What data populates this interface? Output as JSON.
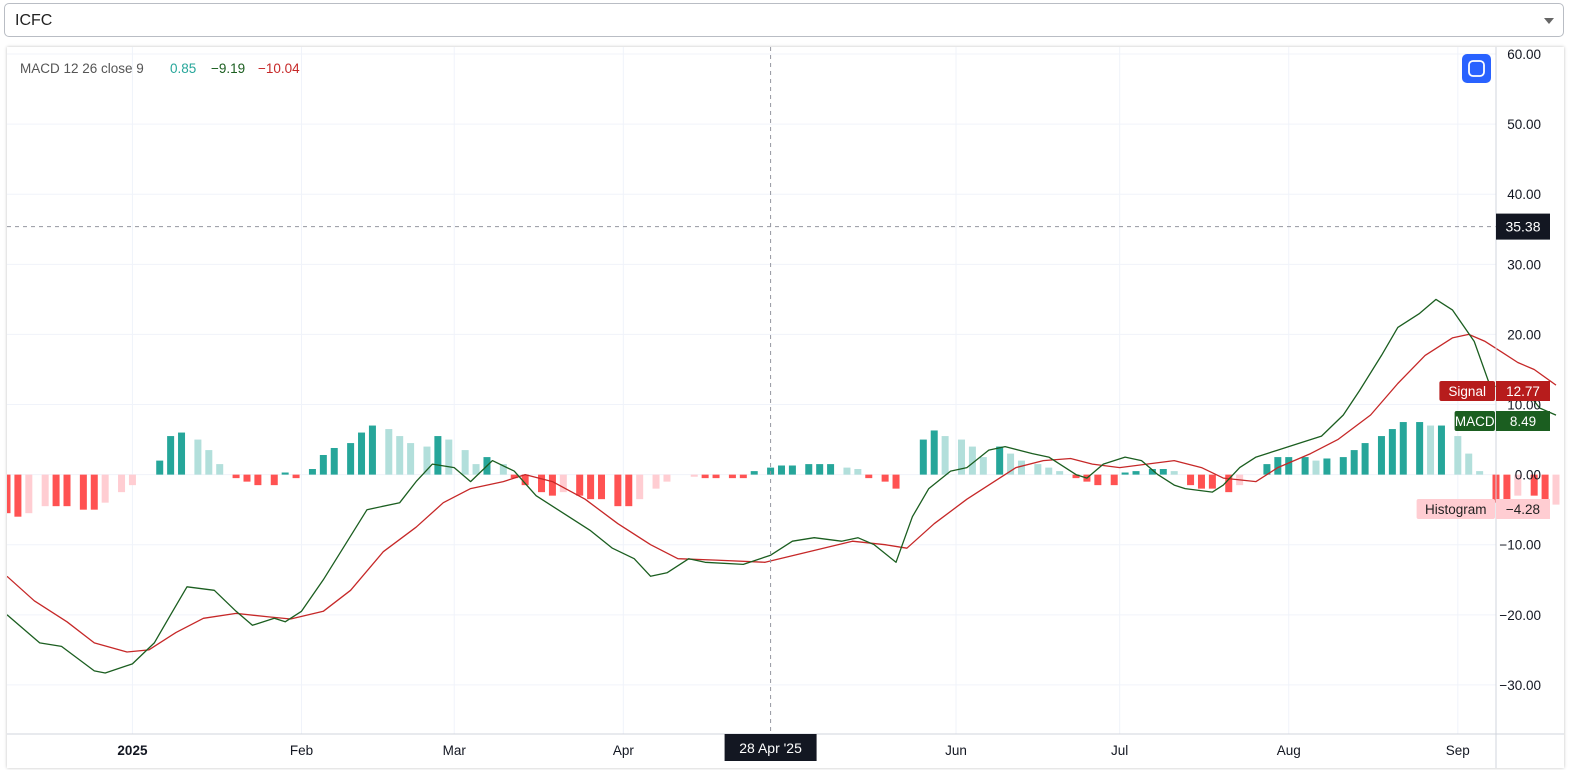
{
  "symbol": {
    "value": "ICFC"
  },
  "legend": {
    "title": "MACD 12 26 close 9",
    "v1": "0.85",
    "v2": "−9.19",
    "v3": "−10.04",
    "c1": "#26a69a",
    "c2": "#1b5e20",
    "c3": "#c62828"
  },
  "crosshair": {
    "x_label": "28 Apr '25",
    "y_label": "35.38",
    "y_value": 35.38,
    "x_date": "2025-04-28"
  },
  "badges": [
    {
      "name": "Signal",
      "value": "12.77",
      "y_value": 12.77,
      "bg": "#b71c1c",
      "fg": "#ffffff"
    },
    {
      "name": "MACD",
      "value": "8.49",
      "y_value": 8.49,
      "bg": "#1b5e20",
      "fg": "#ffffff"
    },
    {
      "name": "Histogram",
      "value": "−4.28",
      "y_value": -4.28,
      "bg": "#ffcdd2",
      "fg": "#222222"
    }
  ],
  "colors": {
    "macd": "#1b5e20",
    "signal": "#c62828",
    "hist_pos_strong": "#26a69a",
    "hist_pos_weak": "#b2dfdb",
    "hist_neg_strong": "#ff5252",
    "hist_neg_weak": "#ffcdd2",
    "grid": "#f0f3fa",
    "axis_text": "#131722",
    "crosshair": "#9598a1",
    "label_bg": "#131722",
    "button": "#2962ff"
  },
  "chart_data": {
    "type": "line",
    "ylim": [
      -37,
      61
    ],
    "xlim": [
      "2024-12-09",
      "2025-09-08"
    ],
    "y_ticks": [
      {
        "v": 60,
        "t": "60.00"
      },
      {
        "v": 50,
        "t": "50.00"
      },
      {
        "v": 40,
        "t": "40.00"
      },
      {
        "v": 30,
        "t": "30.00"
      },
      {
        "v": 20,
        "t": "20.00"
      },
      {
        "v": 10,
        "t": "10.00"
      },
      {
        "v": 0,
        "t": "0.00"
      },
      {
        "v": -10,
        "t": "−10.00"
      },
      {
        "v": -20,
        "t": "−20.00"
      },
      {
        "v": -30,
        "t": "−30.00"
      }
    ],
    "x_ticks": [
      {
        "d": "2025-01-01",
        "t": "2025",
        "bold": true
      },
      {
        "d": "2025-02-01",
        "t": "Feb"
      },
      {
        "d": "2025-03-01",
        "t": "Mar"
      },
      {
        "d": "2025-04-01",
        "t": "Apr"
      },
      {
        "d": "2025-06-01",
        "t": "Jun"
      },
      {
        "d": "2025-07-01",
        "t": "Jul"
      },
      {
        "d": "2025-08-01",
        "t": "Aug"
      },
      {
        "d": "2025-09-01",
        "t": "Sep"
      }
    ],
    "series": [
      {
        "name": "MACD",
        "points": [
          [
            "2024-12-09",
            -20.0
          ],
          [
            "2024-12-15",
            -24.0
          ],
          [
            "2024-12-19",
            -24.5
          ],
          [
            "2024-12-25",
            -28.0
          ],
          [
            "2024-12-27",
            -28.3
          ],
          [
            "2025-01-01",
            -27.0
          ],
          [
            "2025-01-05",
            -24.0
          ],
          [
            "2025-01-08",
            -20.0
          ],
          [
            "2025-01-11",
            -16.0
          ],
          [
            "2025-01-16",
            -16.5
          ],
          [
            "2025-01-20",
            -19.5
          ],
          [
            "2025-01-23",
            -21.5
          ],
          [
            "2025-01-27",
            -20.5
          ],
          [
            "2025-01-29",
            -21.0
          ],
          [
            "2025-02-01",
            -19.5
          ],
          [
            "2025-02-05",
            -15.0
          ],
          [
            "2025-02-09",
            -10.0
          ],
          [
            "2025-02-13",
            -5.0
          ],
          [
            "2025-02-19",
            -4.0
          ],
          [
            "2025-02-22",
            -1.0
          ],
          [
            "2025-02-25",
            1.5
          ],
          [
            "2025-03-01",
            1.0
          ],
          [
            "2025-03-04",
            -1.0
          ],
          [
            "2025-03-08",
            2.0
          ],
          [
            "2025-03-12",
            0.5
          ],
          [
            "2025-03-16",
            -3.0
          ],
          [
            "2025-03-22",
            -6.0
          ],
          [
            "2025-03-26",
            -8.0
          ],
          [
            "2025-03-30",
            -10.5
          ],
          [
            "2025-04-03",
            -12.0
          ],
          [
            "2025-04-06",
            -14.5
          ],
          [
            "2025-04-09",
            -14.0
          ],
          [
            "2025-04-13",
            -12.0
          ],
          [
            "2025-04-16",
            -12.5
          ],
          [
            "2025-04-23",
            -12.8
          ],
          [
            "2025-04-28",
            -11.5
          ],
          [
            "2025-05-02",
            -9.5
          ],
          [
            "2025-05-06",
            -9.0
          ],
          [
            "2025-05-11",
            -9.5
          ],
          [
            "2025-05-14",
            -9.0
          ],
          [
            "2025-05-17",
            -10.0
          ],
          [
            "2025-05-21",
            -12.5
          ],
          [
            "2025-05-24",
            -6.0
          ],
          [
            "2025-05-27",
            -2.0
          ],
          [
            "2025-05-31",
            0.5
          ],
          [
            "2025-06-03",
            1.0
          ],
          [
            "2025-06-07",
            3.5
          ],
          [
            "2025-06-10",
            4.0
          ],
          [
            "2025-06-15",
            3.0
          ],
          [
            "2025-06-18",
            2.5
          ],
          [
            "2025-06-23",
            0.0
          ],
          [
            "2025-06-25",
            -0.5
          ],
          [
            "2025-06-28",
            1.5
          ],
          [
            "2025-07-02",
            2.5
          ],
          [
            "2025-07-05",
            2.0
          ],
          [
            "2025-07-08",
            0.0
          ],
          [
            "2025-07-11",
            -1.5
          ],
          [
            "2025-07-13",
            -2.0
          ],
          [
            "2025-07-18",
            -2.5
          ],
          [
            "2025-07-20",
            -1.5
          ],
          [
            "2025-07-23",
            1.0
          ],
          [
            "2025-07-26",
            2.5
          ],
          [
            "2025-07-30",
            3.5
          ],
          [
            "2025-08-03",
            4.5
          ],
          [
            "2025-08-07",
            5.5
          ],
          [
            "2025-08-11",
            8.5
          ],
          [
            "2025-08-14",
            12.0
          ],
          [
            "2025-08-18",
            17.0
          ],
          [
            "2025-08-21",
            21.0
          ],
          [
            "2025-08-25",
            23.0
          ],
          [
            "2025-08-28",
            25.0
          ],
          [
            "2025-08-31",
            23.5
          ],
          [
            "2025-09-04",
            19.0
          ],
          [
            "2025-09-07",
            12.5
          ],
          [
            "2025-09-10",
            12.8
          ],
          [
            "2025-09-13",
            12.5
          ],
          [
            "2025-09-16",
            9.5
          ],
          [
            "2025-09-19",
            8.49
          ]
        ]
      },
      {
        "name": "Signal",
        "points": [
          [
            "2024-12-09",
            -14.5
          ],
          [
            "2024-12-14",
            -18.0
          ],
          [
            "2024-12-20",
            -21.0
          ],
          [
            "2024-12-25",
            -24.0
          ],
          [
            "2024-12-31",
            -25.3
          ],
          [
            "2025-01-04",
            -25.0
          ],
          [
            "2025-01-09",
            -22.5
          ],
          [
            "2025-01-14",
            -20.5
          ],
          [
            "2025-01-20",
            -19.8
          ],
          [
            "2025-01-26",
            -20.3
          ],
          [
            "2025-01-30",
            -20.6
          ],
          [
            "2025-02-05",
            -19.5
          ],
          [
            "2025-02-10",
            -16.5
          ],
          [
            "2025-02-16",
            -11.0
          ],
          [
            "2025-02-22",
            -7.5
          ],
          [
            "2025-02-27",
            -4.0
          ],
          [
            "2025-03-04",
            -2.0
          ],
          [
            "2025-03-10",
            -1.0
          ],
          [
            "2025-03-14",
            0.0
          ],
          [
            "2025-03-19",
            -1.0
          ],
          [
            "2025-03-25",
            -3.5
          ],
          [
            "2025-03-31",
            -7.0
          ],
          [
            "2025-04-06",
            -10.0
          ],
          [
            "2025-04-11",
            -12.0
          ],
          [
            "2025-04-18",
            -12.2
          ],
          [
            "2025-04-27",
            -12.5
          ],
          [
            "2025-05-05",
            -11.0
          ],
          [
            "2025-05-13",
            -9.5
          ],
          [
            "2025-05-19",
            -10.0
          ],
          [
            "2025-05-23",
            -10.5
          ],
          [
            "2025-05-28",
            -7.0
          ],
          [
            "2025-06-03",
            -3.5
          ],
          [
            "2025-06-08",
            -1.0
          ],
          [
            "2025-06-12",
            1.0
          ],
          [
            "2025-06-17",
            2.0
          ],
          [
            "2025-06-22",
            2.3
          ],
          [
            "2025-06-26",
            1.5
          ],
          [
            "2025-07-01",
            1.0
          ],
          [
            "2025-07-06",
            1.5
          ],
          [
            "2025-07-11",
            2.0
          ],
          [
            "2025-07-16",
            1.0
          ],
          [
            "2025-07-20",
            -0.5
          ],
          [
            "2025-07-26",
            -1.0
          ],
          [
            "2025-07-30",
            1.0
          ],
          [
            "2025-08-05",
            3.0
          ],
          [
            "2025-08-10",
            5.0
          ],
          [
            "2025-08-16",
            8.5
          ],
          [
            "2025-08-21",
            13.0
          ],
          [
            "2025-08-26",
            17.0
          ],
          [
            "2025-08-31",
            19.5
          ],
          [
            "2025-09-03",
            20.0
          ],
          [
            "2025-09-06",
            19.0
          ],
          [
            "2025-09-09",
            17.5
          ],
          [
            "2025-09-12",
            16.0
          ],
          [
            "2025-09-15",
            15.0
          ],
          [
            "2025-09-19",
            12.77
          ]
        ]
      },
      {
        "name": "Histogram",
        "type": "bar",
        "points": [
          [
            "2024-12-09",
            -5.5
          ],
          [
            "2024-12-11",
            -6.0
          ],
          [
            "2024-12-13",
            -5.5
          ],
          [
            "2024-12-16",
            -4.5
          ],
          [
            "2024-12-18",
            -4.5
          ],
          [
            "2024-12-20",
            -4.5
          ],
          [
            "2024-12-23",
            -5.0
          ],
          [
            "2024-12-25",
            -5.0
          ],
          [
            "2024-12-27",
            -4.0
          ],
          [
            "2024-12-30",
            -2.5
          ],
          [
            "2025-01-01",
            -1.5
          ],
          [
            "2025-01-06",
            2.0
          ],
          [
            "2025-01-08",
            5.5
          ],
          [
            "2025-01-10",
            6.0
          ],
          [
            "2025-01-13",
            5.0
          ],
          [
            "2025-01-15",
            3.5
          ],
          [
            "2025-01-17",
            1.5
          ],
          [
            "2025-01-20",
            -0.5
          ],
          [
            "2025-01-22",
            -1.0
          ],
          [
            "2025-01-24",
            -1.5
          ],
          [
            "2025-01-27",
            -1.5
          ],
          [
            "2025-01-29",
            0.3
          ],
          [
            "2025-01-31",
            -0.5
          ],
          [
            "2025-02-03",
            0.8
          ],
          [
            "2025-02-05",
            2.8
          ],
          [
            "2025-02-07",
            3.8
          ],
          [
            "2025-02-10",
            4.5
          ],
          [
            "2025-02-12",
            6.0
          ],
          [
            "2025-02-14",
            7.0
          ],
          [
            "2025-02-17",
            6.5
          ],
          [
            "2025-02-19",
            5.5
          ],
          [
            "2025-02-21",
            4.5
          ],
          [
            "2025-02-24",
            4.0
          ],
          [
            "2025-02-26",
            5.5
          ],
          [
            "2025-02-28",
            5.0
          ],
          [
            "2025-03-03",
            3.5
          ],
          [
            "2025-03-05",
            1.5
          ],
          [
            "2025-03-07",
            2.5
          ],
          [
            "2025-03-10",
            1.5
          ],
          [
            "2025-03-12",
            -0.5
          ],
          [
            "2025-03-14",
            -1.5
          ],
          [
            "2025-03-17",
            -2.5
          ],
          [
            "2025-03-19",
            -3.0
          ],
          [
            "2025-03-21",
            -2.5
          ],
          [
            "2025-03-24",
            -3.0
          ],
          [
            "2025-03-26",
            -3.5
          ],
          [
            "2025-03-28",
            -3.5
          ],
          [
            "2025-03-31",
            -4.5
          ],
          [
            "2025-04-02",
            -4.5
          ],
          [
            "2025-04-04",
            -3.5
          ],
          [
            "2025-04-07",
            -2.0
          ],
          [
            "2025-04-09",
            -1.0
          ],
          [
            "2025-04-14",
            -0.3
          ],
          [
            "2025-04-16",
            -0.5
          ],
          [
            "2025-04-18",
            -0.5
          ],
          [
            "2025-04-21",
            -0.5
          ],
          [
            "2025-04-23",
            -0.5
          ],
          [
            "2025-04-25",
            0.5
          ],
          [
            "2025-04-28",
            1.0
          ],
          [
            "2025-04-30",
            1.3
          ],
          [
            "2025-05-02",
            1.3
          ],
          [
            "2025-05-05",
            1.5
          ],
          [
            "2025-05-07",
            1.5
          ],
          [
            "2025-05-09",
            1.5
          ],
          [
            "2025-05-12",
            1.0
          ],
          [
            "2025-05-14",
            0.8
          ],
          [
            "2025-05-16",
            -0.5
          ],
          [
            "2025-05-19",
            -1.0
          ],
          [
            "2025-05-21",
            -2.0
          ],
          [
            "2025-05-26",
            5.0
          ],
          [
            "2025-05-28",
            6.3
          ],
          [
            "2025-05-30",
            5.5
          ],
          [
            "2025-06-02",
            5.0
          ],
          [
            "2025-06-04",
            4.0
          ],
          [
            "2025-06-06",
            2.5
          ],
          [
            "2025-06-09",
            4.0
          ],
          [
            "2025-06-11",
            3.0
          ],
          [
            "2025-06-13",
            2.0
          ],
          [
            "2025-06-16",
            1.5
          ],
          [
            "2025-06-18",
            1.0
          ],
          [
            "2025-06-20",
            0.5
          ],
          [
            "2025-06-23",
            -0.5
          ],
          [
            "2025-06-25",
            -1.0
          ],
          [
            "2025-06-27",
            -1.5
          ],
          [
            "2025-06-30",
            -1.5
          ],
          [
            "2025-07-02",
            0.3
          ],
          [
            "2025-07-04",
            0.5
          ],
          [
            "2025-07-07",
            0.8
          ],
          [
            "2025-07-09",
            0.8
          ],
          [
            "2025-07-11",
            0.5
          ],
          [
            "2025-07-14",
            -1.5
          ],
          [
            "2025-07-16",
            -2.0
          ],
          [
            "2025-07-18",
            -2.0
          ],
          [
            "2025-07-21",
            -2.5
          ],
          [
            "2025-07-23",
            -1.5
          ],
          [
            "2025-07-28",
            1.5
          ],
          [
            "2025-07-30",
            2.5
          ],
          [
            "2025-08-01",
            2.5
          ],
          [
            "2025-08-04",
            2.5
          ],
          [
            "2025-08-06",
            2.0
          ],
          [
            "2025-08-08",
            2.3
          ],
          [
            "2025-08-11",
            2.5
          ],
          [
            "2025-08-13",
            3.5
          ],
          [
            "2025-08-15",
            4.5
          ],
          [
            "2025-08-18",
            5.5
          ],
          [
            "2025-08-20",
            6.5
          ],
          [
            "2025-08-22",
            7.5
          ],
          [
            "2025-08-25",
            7.5
          ],
          [
            "2025-08-27",
            7.0
          ],
          [
            "2025-08-29",
            7.0
          ],
          [
            "2025-09-01",
            5.5
          ],
          [
            "2025-09-03",
            3.0
          ],
          [
            "2025-09-05",
            0.5
          ],
          [
            "2025-09-08",
            -4.0
          ],
          [
            "2025-09-10",
            -5.0
          ],
          [
            "2025-09-12",
            -3.0
          ],
          [
            "2025-09-15",
            -3.0
          ],
          [
            "2025-09-17",
            -4.5
          ],
          [
            "2025-09-19",
            -4.28
          ]
        ]
      }
    ]
  }
}
